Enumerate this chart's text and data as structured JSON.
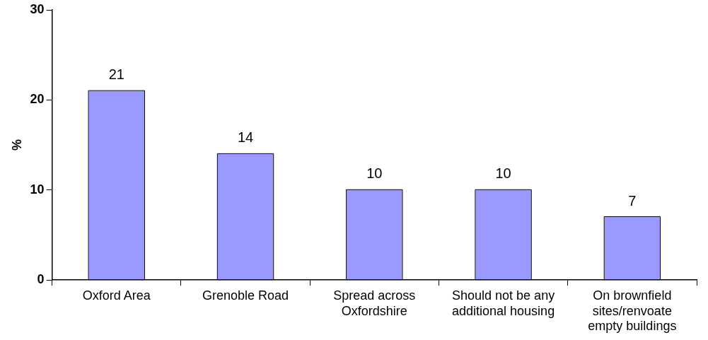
{
  "chart_data": {
    "type": "bar",
    "ylabel": "%",
    "categories": [
      "Oxford Area",
      "Grenoble Road",
      "Spread across Oxfordshire",
      "Should not be any additional housing",
      "On brownfield sites/renvoate empty buildings"
    ],
    "values": [
      21,
      14,
      10,
      10,
      7
    ],
    "color": "#9999ff",
    "ylim": [
      0,
      30
    ],
    "yticks": [
      0,
      10,
      20,
      30
    ],
    "grid": false,
    "data_labels": true
  }
}
